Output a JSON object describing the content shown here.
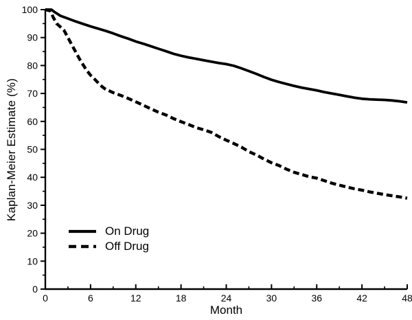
{
  "chart_data": {
    "type": "line",
    "title": "",
    "xlabel": "Month",
    "ylabel": "Kaplan-Meier Estimate (%)",
    "xlim": [
      0,
      48
    ],
    "ylim": [
      0,
      100
    ],
    "x_major_ticks": [
      0,
      6,
      12,
      18,
      24,
      30,
      36,
      42,
      48
    ],
    "x_minor_ticks": [
      3,
      9,
      15,
      21,
      27,
      33,
      39,
      45
    ],
    "y_major_ticks": [
      0,
      10,
      20,
      30,
      40,
      50,
      60,
      70,
      80,
      90,
      100
    ],
    "y_minor_ticks": [
      5,
      15,
      25,
      35,
      45,
      55,
      65,
      75,
      85,
      95
    ],
    "grid": false,
    "legend_position": "lower-left-inside",
    "colors": {
      "line": "#000000",
      "background": "#ffffff"
    },
    "series": [
      {
        "name": "On Drug",
        "style": "solid",
        "points": [
          [
            0,
            100
          ],
          [
            0.8,
            100
          ],
          [
            1.2,
            99.2
          ],
          [
            2,
            97.8
          ],
          [
            3,
            96.8
          ],
          [
            4,
            95.8
          ],
          [
            5,
            94.9
          ],
          [
            6,
            94
          ],
          [
            7,
            93.2
          ],
          [
            8,
            92.4
          ],
          [
            9,
            91.5
          ],
          [
            10,
            90.5
          ],
          [
            11,
            89.6
          ],
          [
            12,
            88.6
          ],
          [
            13,
            87.8
          ],
          [
            14,
            86.9
          ],
          [
            15,
            86
          ],
          [
            16,
            85.1
          ],
          [
            17,
            84.2
          ],
          [
            18,
            83.5
          ],
          [
            19,
            82.9
          ],
          [
            20,
            82.4
          ],
          [
            21,
            81.9
          ],
          [
            22,
            81.4
          ],
          [
            23,
            80.9
          ],
          [
            24,
            80.5
          ],
          [
            25,
            79.9
          ],
          [
            26,
            79
          ],
          [
            27,
            78
          ],
          [
            28,
            77
          ],
          [
            29,
            75.9
          ],
          [
            30,
            74.9
          ],
          [
            31,
            74.1
          ],
          [
            32,
            73.4
          ],
          [
            33,
            72.7
          ],
          [
            34,
            72.1
          ],
          [
            35,
            71.6
          ],
          [
            36,
            71.1
          ],
          [
            37,
            70.5
          ],
          [
            38,
            70
          ],
          [
            39,
            69.5
          ],
          [
            40,
            69
          ],
          [
            41,
            68.5
          ],
          [
            42,
            68.1
          ],
          [
            43,
            67.9
          ],
          [
            44,
            67.8
          ],
          [
            45,
            67.7
          ],
          [
            46,
            67.5
          ],
          [
            47,
            67.2
          ],
          [
            48,
            66.8
          ]
        ]
      },
      {
        "name": "Off Drug",
        "style": "dashed",
        "points": [
          [
            0,
            100
          ],
          [
            0.7,
            99.5
          ],
          [
            1,
            97.5
          ],
          [
            1.5,
            95
          ],
          [
            2,
            93.8
          ],
          [
            2.5,
            92.5
          ],
          [
            3,
            90
          ],
          [
            3.5,
            87.5
          ],
          [
            4,
            85
          ],
          [
            4.5,
            82.5
          ],
          [
            5,
            80.3
          ],
          [
            5.5,
            78.2
          ],
          [
            6,
            76.5
          ],
          [
            6.5,
            75.2
          ],
          [
            7,
            73.8
          ],
          [
            7.5,
            72.5
          ],
          [
            8,
            71.5
          ],
          [
            9,
            70.3
          ],
          [
            10,
            69.3
          ],
          [
            11,
            68.2
          ],
          [
            12,
            67
          ],
          [
            13,
            65.8
          ],
          [
            14,
            64.5
          ],
          [
            15,
            63.3
          ],
          [
            16,
            62.3
          ],
          [
            17,
            61
          ],
          [
            18,
            59.9
          ],
          [
            19,
            58.9
          ],
          [
            20,
            57.8
          ],
          [
            21,
            57
          ],
          [
            22,
            56.1
          ],
          [
            23,
            54.6
          ],
          [
            24,
            53.3
          ],
          [
            25,
            52.1
          ],
          [
            26,
            50.8
          ],
          [
            27,
            49.2
          ],
          [
            28,
            48
          ],
          [
            29,
            46.5
          ],
          [
            30,
            45.2
          ],
          [
            31,
            44.2
          ],
          [
            32,
            42.9
          ],
          [
            33,
            41.8
          ],
          [
            34,
            41
          ],
          [
            35,
            40.2
          ],
          [
            36,
            39.7
          ],
          [
            37,
            38.8
          ],
          [
            38,
            37.9
          ],
          [
            39,
            37.2
          ],
          [
            40,
            36.5
          ],
          [
            41,
            35.9
          ],
          [
            42,
            35.4
          ],
          [
            43,
            34.8
          ],
          [
            44,
            34.3
          ],
          [
            45,
            33.8
          ],
          [
            46,
            33.4
          ],
          [
            47,
            33
          ],
          [
            48,
            32.5
          ]
        ]
      }
    ]
  }
}
